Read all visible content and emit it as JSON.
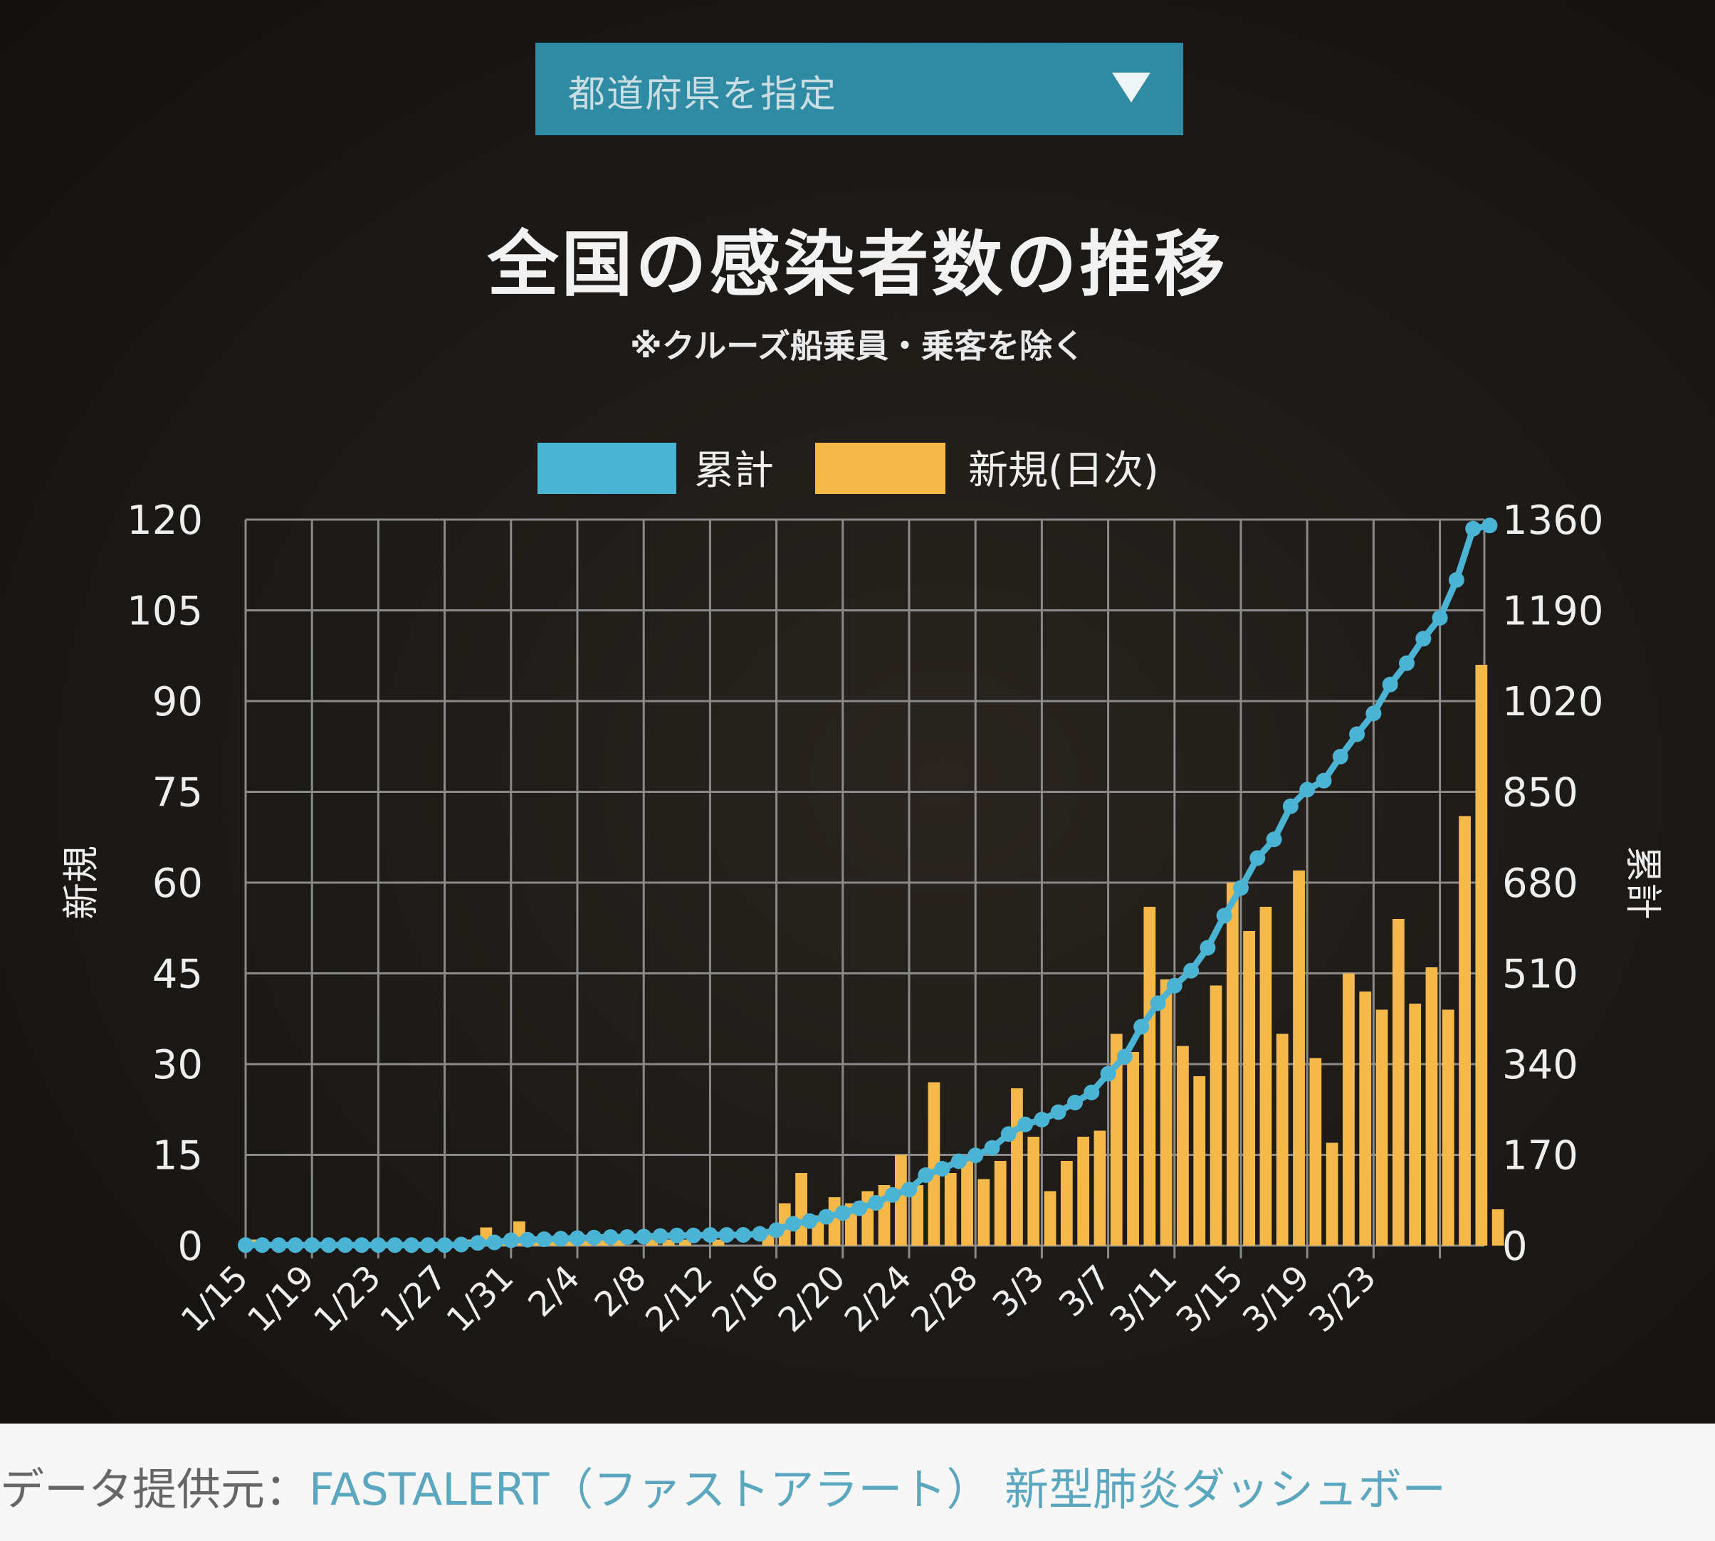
{
  "dropdown": {
    "label": "都道府県を指定"
  },
  "header": {
    "title": "全国の感染者数の推移",
    "subtitle": "※クルーズ船乗員・乗客を除く"
  },
  "legend": {
    "cumulative": "累計",
    "daily": "新規(日次)"
  },
  "colors": {
    "cumulative": "#4bb3d4",
    "daily": "#f5b94a",
    "grid": "#8a8a8a",
    "background": "#1d1a17"
  },
  "footer": {
    "prefix": "データ提供元：",
    "source": "FASTALERT（ファストアラート）  新型肺炎ダッシュボー"
  },
  "chart_data": {
    "type": "bar",
    "title": "全国の感染者数の推移",
    "subtitle": "※クルーズ船乗員・乗客を除く",
    "ylabel_left": "新規",
    "ylabel_right": "累計",
    "ylim_left": [
      0,
      120
    ],
    "ylim_right": [
      0,
      1360
    ],
    "yticks_left": [
      "0",
      "15",
      "30",
      "45",
      "60",
      "75",
      "90",
      "105",
      "120"
    ],
    "yticks_right": [
      "0",
      "170",
      "340",
      "510",
      "680",
      "850",
      "1020",
      "1190",
      "1360"
    ],
    "grid": true,
    "legend_position": "top",
    "x_tick_labels": [
      "1/15",
      "1/19",
      "1/23",
      "1/27",
      "1/31",
      "2/4",
      "2/8",
      "2/12",
      "2/16",
      "2/20",
      "2/24",
      "2/28",
      "3/3",
      "3/7",
      "3/11",
      "3/15",
      "3/19",
      "3/23"
    ],
    "x_tick_start_days": [
      0,
      4,
      8,
      12,
      16,
      20,
      24,
      28,
      32,
      36,
      40,
      44,
      48,
      52,
      56,
      60,
      64,
      68
    ],
    "series": [
      {
        "name": "新規(日次)",
        "type": "bar",
        "axis": "left",
        "values": [
          1,
          0,
          0,
          0,
          0,
          0,
          0,
          0,
          0,
          0,
          0,
          0,
          0,
          1,
          3,
          1,
          4,
          1,
          1,
          1,
          1,
          1,
          1,
          0,
          1,
          1,
          1,
          0,
          1,
          0,
          0,
          2,
          7,
          12,
          5,
          8,
          7,
          9,
          10,
          15,
          10,
          27,
          12,
          14,
          11,
          14,
          26,
          18,
          9,
          14,
          18,
          19,
          35,
          32,
          56,
          44,
          33,
          28,
          43,
          60,
          52,
          56,
          35,
          62,
          31,
          17,
          45,
          42,
          39,
          54,
          40,
          46,
          39,
          71,
          96,
          6
        ],
        "dates": [
          "1/15",
          "1/16",
          "1/17",
          "1/18",
          "1/19",
          "1/20",
          "1/21",
          "1/22",
          "1/23",
          "1/24",
          "1/25",
          "1/26",
          "1/27",
          "1/28",
          "1/29",
          "1/30",
          "1/31",
          "2/1",
          "2/2",
          "2/3",
          "2/4",
          "2/5",
          "2/6",
          "2/7",
          "2/8",
          "2/9",
          "2/10",
          "2/11",
          "2/12",
          "2/13",
          "2/14",
          "2/15",
          "2/16",
          "2/17",
          "2/18",
          "2/19",
          "2/20",
          "2/21",
          "2/22",
          "2/23",
          "2/24",
          "2/25",
          "2/26",
          "2/27",
          "2/28",
          "2/29",
          "3/1",
          "3/2",
          "3/3",
          "3/4",
          "3/5",
          "3/6",
          "3/7",
          "3/8",
          "3/9",
          "3/10",
          "3/11",
          "3/12",
          "3/13",
          "3/14",
          "3/15",
          "3/16",
          "3/17",
          "3/18",
          "3/19",
          "3/20",
          "3/21",
          "3/22",
          "3/23",
          "3/24",
          "3/25",
          "3/26",
          "3/27",
          "3/28",
          "3/29",
          "3/30"
        ]
      },
      {
        "name": "累計",
        "type": "line",
        "axis": "right",
        "values": [
          1,
          1,
          1,
          1,
          1,
          1,
          1,
          1,
          1,
          1,
          1,
          1,
          1,
          2,
          5,
          6,
          10,
          11,
          12,
          13,
          14,
          15,
          16,
          16,
          17,
          18,
          19,
          19,
          20,
          20,
          20,
          22,
          29,
          41,
          46,
          54,
          61,
          70,
          80,
          95,
          105,
          132,
          144,
          158,
          169,
          183,
          209,
          227,
          236,
          250,
          268,
          287,
          322,
          354,
          410,
          454,
          487,
          515,
          558,
          618,
          670,
          726,
          761,
          823,
          854,
          871,
          916,
          958,
          997,
          1051,
          1091,
          1137,
          1176,
          1247,
          1343,
          1349
        ]
      }
    ]
  }
}
